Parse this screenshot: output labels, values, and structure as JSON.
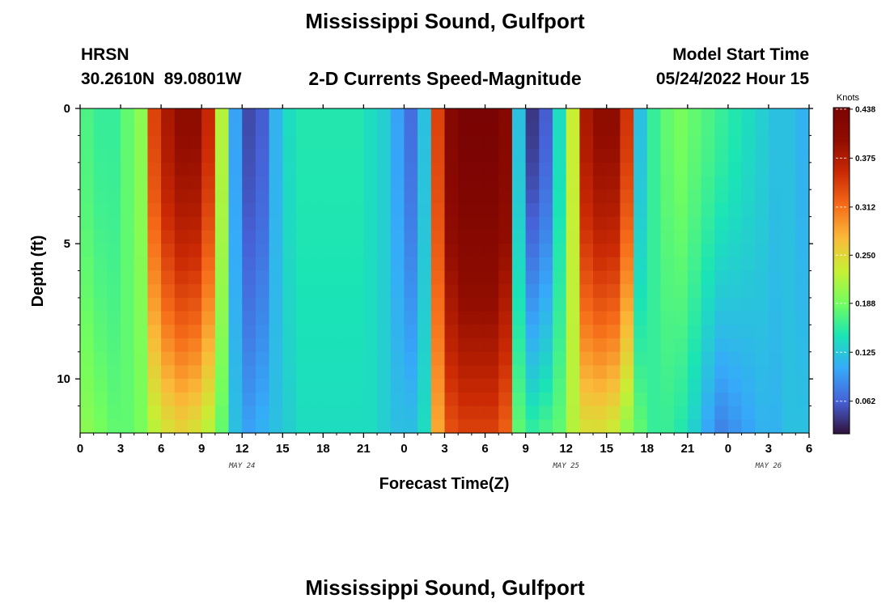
{
  "page": {
    "title": "Mississippi Sound, Gulfport",
    "station_code": "HRSN",
    "coordinates": "30.2610N  89.0801W",
    "subtitle": "2-D Currents Speed-Magnitude",
    "model_start_label": "Model Start Time",
    "model_start_value": "05/24/2022 Hour 15",
    "footer_title": "Mississippi Sound, Gulfport"
  },
  "chart_data": {
    "type": "heatmap",
    "title": "2-D Currents Speed-Magnitude",
    "xlabel": "Forecast Time(Z)",
    "ylabel": "Depth (ft)",
    "x_tick_labels": [
      "0",
      "3",
      "6",
      "9",
      "12",
      "15",
      "18",
      "21",
      "0",
      "3",
      "6",
      "9",
      "12",
      "15",
      "18",
      "21",
      "0",
      "3",
      "6"
    ],
    "day_labels": [
      {
        "label": "MAY 24",
        "hour_index": 12
      },
      {
        "label": "MAY 25",
        "hour_index": 36
      },
      {
        "label": "MAY 26",
        "hour_index": 51
      }
    ],
    "x_range_hours": [
      0,
      54
    ],
    "y_tick_labels": [
      "0",
      "5",
      "10"
    ],
    "ylim_ft": [
      0,
      12
    ],
    "y_inverted": true,
    "colorbar": {
      "unit": "Knots",
      "min": 0.02,
      "max": 0.44,
      "tick_labels": [
        "0.438",
        "0.375",
        "0.312",
        "0.250",
        "0.188",
        "0.125",
        "0.062"
      ],
      "colormap": "turbo"
    },
    "hours": [
      0,
      1,
      2,
      3,
      4,
      5,
      6,
      7,
      8,
      9,
      10,
      11,
      12,
      13,
      14,
      15,
      16,
      17,
      18,
      19,
      20,
      21,
      22,
      23,
      24,
      25,
      26,
      27,
      28,
      29,
      30,
      31,
      32,
      33,
      34,
      35,
      36,
      37,
      38,
      39,
      40,
      41,
      42,
      43,
      44,
      45,
      46,
      47,
      48,
      49,
      50,
      51,
      52,
      53,
      54
    ],
    "surface_speed_knots": [
      0.17,
      0.16,
      0.16,
      0.18,
      0.2,
      0.34,
      0.38,
      0.4,
      0.4,
      0.36,
      0.22,
      0.1,
      0.05,
      0.06,
      0.11,
      0.14,
      0.15,
      0.15,
      0.15,
      0.15,
      0.15,
      0.14,
      0.13,
      0.1,
      0.07,
      0.12,
      0.34,
      0.42,
      0.44,
      0.44,
      0.44,
      0.42,
      0.12,
      0.04,
      0.06,
      0.14,
      0.23,
      0.38,
      0.4,
      0.4,
      0.35,
      0.12,
      0.16,
      0.18,
      0.19,
      0.18,
      0.17,
      0.16,
      0.15,
      0.14,
      0.13,
      0.12,
      0.12,
      0.11,
      0.12
    ],
    "bottom_speed_knots": [
      0.2,
      0.19,
      0.18,
      0.18,
      0.19,
      0.22,
      0.24,
      0.25,
      0.24,
      0.22,
      0.18,
      0.12,
      0.1,
      0.11,
      0.12,
      0.13,
      0.14,
      0.14,
      0.14,
      0.14,
      0.14,
      0.14,
      0.13,
      0.12,
      0.12,
      0.14,
      0.28,
      0.33,
      0.34,
      0.34,
      0.34,
      0.32,
      0.18,
      0.16,
      0.17,
      0.18,
      0.22,
      0.24,
      0.24,
      0.23,
      0.2,
      0.18,
      0.16,
      0.16,
      0.15,
      0.13,
      0.1,
      0.08,
      0.09,
      0.1,
      0.11,
      0.11,
      0.12,
      0.12,
      0.12
    ]
  }
}
